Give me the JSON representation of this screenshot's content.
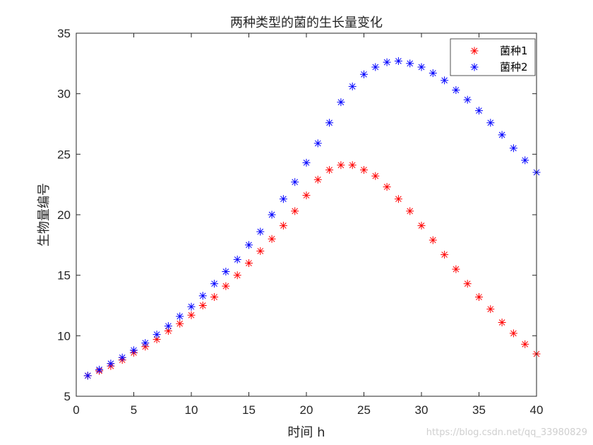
{
  "chart_data": {
    "type": "scatter",
    "title": "两种类型的菌的生长量变化",
    "xlabel": "时间 h",
    "ylabel": "生物量编号",
    "xlim": [
      0,
      40
    ],
    "ylim": [
      5,
      35
    ],
    "xticks": [
      0,
      5,
      10,
      15,
      20,
      25,
      30,
      35,
      40
    ],
    "yticks": [
      5,
      10,
      15,
      20,
      25,
      30,
      35
    ],
    "grid": false,
    "legend_position": "top-right",
    "marker": "*",
    "series": [
      {
        "name": "菌种1",
        "color": "#ff0000",
        "x": [
          1,
          2,
          3,
          4,
          5,
          6,
          7,
          8,
          9,
          10,
          11,
          12,
          13,
          14,
          15,
          16,
          17,
          18,
          19,
          20,
          21,
          22,
          23,
          24,
          25,
          26,
          27,
          28,
          29,
          30,
          31,
          32,
          33,
          34,
          35,
          36,
          37,
          38,
          39,
          40
        ],
        "y": [
          6.7,
          7.1,
          7.5,
          8.0,
          8.6,
          9.1,
          9.7,
          10.4,
          11.0,
          11.7,
          12.5,
          13.2,
          14.1,
          15.0,
          16.0,
          17.0,
          18.0,
          19.1,
          20.3,
          21.6,
          22.9,
          23.7,
          24.1,
          24.1,
          23.7,
          23.2,
          22.3,
          21.3,
          20.3,
          19.1,
          17.9,
          16.7,
          15.5,
          14.3,
          13.2,
          12.2,
          11.1,
          10.2,
          9.3,
          8.5
        ]
      },
      {
        "name": "菌种2",
        "color": "#0000ff",
        "x": [
          1,
          2,
          3,
          4,
          5,
          6,
          7,
          8,
          9,
          10,
          11,
          12,
          13,
          14,
          15,
          16,
          17,
          18,
          19,
          20,
          21,
          22,
          23,
          24,
          25,
          26,
          27,
          28,
          29,
          30,
          31,
          32,
          33,
          34,
          35,
          36,
          37,
          38,
          39,
          40
        ],
        "y": [
          6.7,
          7.2,
          7.7,
          8.2,
          8.8,
          9.4,
          10.1,
          10.8,
          11.6,
          12.4,
          13.3,
          14.3,
          15.3,
          16.3,
          17.5,
          18.6,
          20.0,
          21.3,
          22.7,
          24.3,
          25.9,
          27.6,
          29.3,
          30.6,
          31.6,
          32.2,
          32.6,
          32.7,
          32.5,
          32.2,
          31.7,
          31.1,
          30.3,
          29.5,
          28.6,
          27.6,
          26.6,
          25.5,
          24.5,
          23.5
        ]
      }
    ]
  },
  "watermark": "https://blog.csdn.net/qq_33980829"
}
